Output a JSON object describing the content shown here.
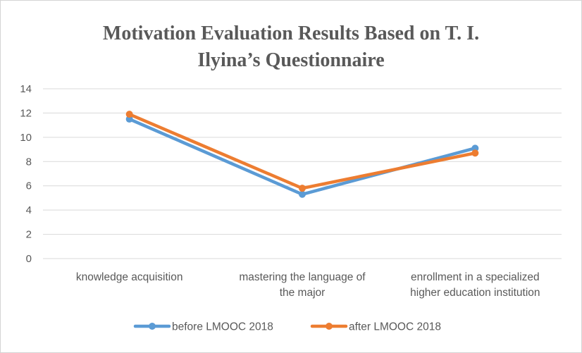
{
  "chart_data": {
    "type": "line",
    "title_lines": [
      "Motivation Evaluation Results Based on T. I.",
      "Ilyina’s Questionnaire"
    ],
    "categories": [
      [
        "knowledge acquisition"
      ],
      [
        "mastering the language of",
        "the major"
      ],
      [
        "enrollment in a specialized",
        "higher education institution"
      ]
    ],
    "series": [
      {
        "name": "before LMOOC 2018",
        "color": "#5b9bd5",
        "values": [
          11.5,
          5.3,
          9.1
        ]
      },
      {
        "name": "after LMOOC 2018",
        "color": "#ed7d31",
        "values": [
          11.9,
          5.8,
          8.7
        ]
      }
    ],
    "y_ticks": [
      "0",
      "2",
      "4",
      "6",
      "8",
      "10",
      "12",
      "14"
    ],
    "ylim": [
      0,
      14
    ],
    "grid": true,
    "legend": "bottom"
  }
}
